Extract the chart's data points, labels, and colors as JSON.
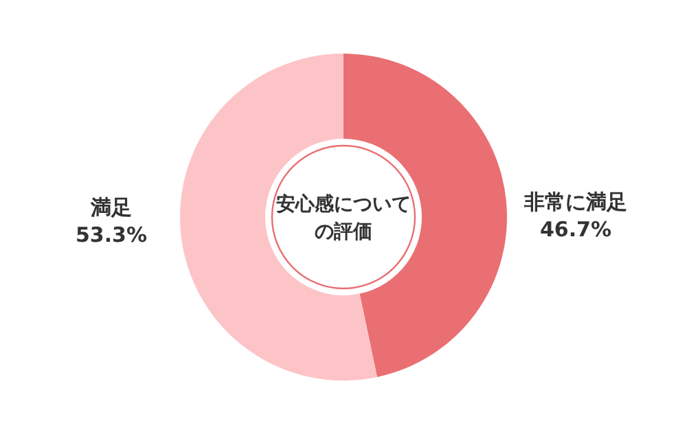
{
  "chart_data": {
    "type": "donut",
    "title": "安心感についての評価",
    "categories": [
      "非常に満足",
      "満足"
    ],
    "values": [
      46.7,
      53.3
    ],
    "colors": [
      "#e96f73",
      "#fdc4c7"
    ],
    "value_labels": [
      "46.7%",
      "53.3%"
    ]
  }
}
